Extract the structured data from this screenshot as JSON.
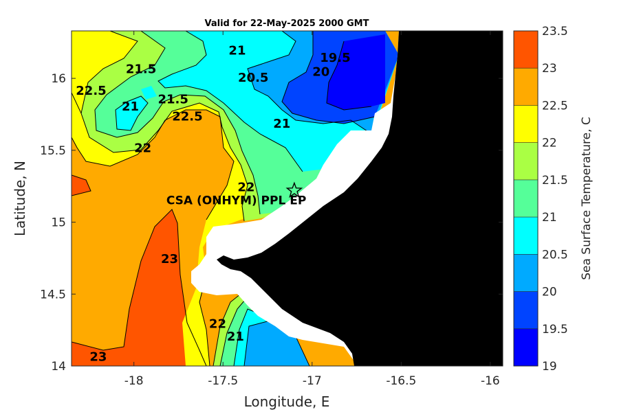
{
  "chart_data": {
    "type": "heatmap",
    "title": "Valid for 22-May-2025 2000 GMT",
    "xlabel": "Longitude, E",
    "ylabel": "Latitude, N",
    "xlim": [
      -18.35,
      -15.93
    ],
    "ylim": [
      14.0,
      16.33
    ],
    "xticks": [
      -18,
      -17.5,
      -17,
      -16.5,
      -16
    ],
    "xtick_labels": [
      "-18",
      "-17.5",
      "-17",
      "-16.5",
      "-16"
    ],
    "yticks": [
      14,
      14.5,
      15,
      15.5,
      16
    ],
    "ytick_labels": [
      "14",
      "14.5",
      "15",
      "15.5",
      "16"
    ],
    "colorbar": {
      "label": "Sea Surface Temperature, C",
      "levels": [
        19,
        19.5,
        20,
        20.5,
        21,
        21.5,
        22,
        22.5,
        23,
        23.5
      ],
      "tick_labels": [
        "19",
        "19.5",
        "20",
        "20.5",
        "21",
        "21.5",
        "22",
        "22.5",
        "23",
        "23.5"
      ],
      "colors": [
        "#0000ff",
        "#0044ff",
        "#00aaff",
        "#00ffff",
        "#55ff99",
        "#aaff44",
        "#ffff00",
        "#ffaa00",
        "#ff5500"
      ]
    },
    "contour_labels": [
      {
        "text": "22.5",
        "lon": -18.24,
        "lat": 15.91
      },
      {
        "text": "21.5",
        "lon": -17.96,
        "lat": 16.06
      },
      {
        "text": "21",
        "lon": -17.42,
        "lat": 16.19
      },
      {
        "text": "20.5",
        "lon": -17.33,
        "lat": 16.0
      },
      {
        "text": "20",
        "lon": -16.95,
        "lat": 16.04
      },
      {
        "text": "19.5",
        "lon": -16.87,
        "lat": 16.14
      },
      {
        "text": "21",
        "lon": -18.02,
        "lat": 15.8
      },
      {
        "text": "21.5",
        "lon": -17.78,
        "lat": 15.85
      },
      {
        "text": "22.5",
        "lon": -17.7,
        "lat": 15.73
      },
      {
        "text": "21",
        "lon": -17.17,
        "lat": 15.68
      },
      {
        "text": "22",
        "lon": -17.95,
        "lat": 15.51
      },
      {
        "text": "22",
        "lon": -17.37,
        "lat": 15.24
      },
      {
        "text": "23",
        "lon": -17.8,
        "lat": 14.74
      },
      {
        "text": "22",
        "lon": -17.53,
        "lat": 14.29
      },
      {
        "text": "21",
        "lon": -17.43,
        "lat": 14.2
      },
      {
        "text": "23",
        "lon": -18.2,
        "lat": 14.06
      }
    ],
    "site": {
      "name": "CSA (ONHYM) PPL EP",
      "lon": -17.1,
      "lat": 15.22,
      "marker": "star"
    },
    "land_color": "#000000",
    "mask_color": "#ffffff"
  }
}
